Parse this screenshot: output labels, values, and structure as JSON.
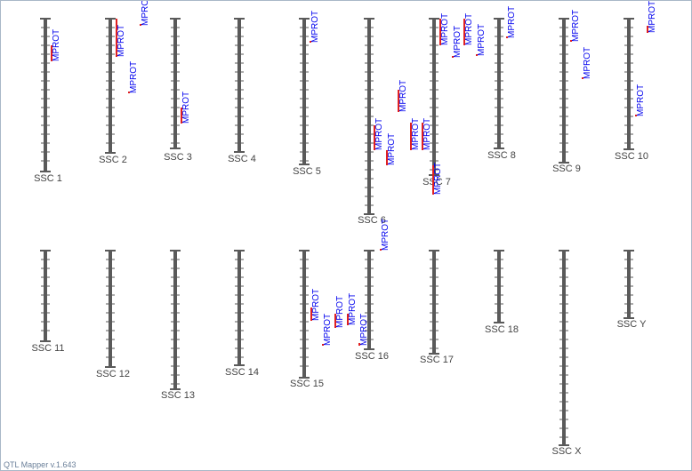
{
  "chromosomes": [
    {
      "label": "SSC 1"
    },
    {
      "label": "SSC 2"
    },
    {
      "label": "SSC 3"
    },
    {
      "label": "SSC 4"
    },
    {
      "label": "SSC 5"
    },
    {
      "label": "SSC 6"
    },
    {
      "label": "SSC 7"
    },
    {
      "label": "SSC 8"
    },
    {
      "label": "SSC 9"
    },
    {
      "label": "SSC 10"
    },
    {
      "label": "SSC 11"
    },
    {
      "label": "SSC 12"
    },
    {
      "label": "SSC 13"
    },
    {
      "label": "SSC 14"
    },
    {
      "label": "SSC 15"
    },
    {
      "label": "SSC 16"
    },
    {
      "label": "SSC 17"
    },
    {
      "label": "SSC 18"
    },
    {
      "label": "SSC X"
    },
    {
      "label": "SSC Y"
    }
  ],
  "qtls": [
    {
      "label": "MPROT"
    },
    {
      "label": "MPROT"
    },
    {
      "label": "MPROT"
    },
    {
      "label": "MPROT"
    },
    {
      "label": "MPROT"
    },
    {
      "label": "MPROT"
    },
    {
      "label": "MPROT"
    },
    {
      "label": "MPROT"
    },
    {
      "label": "MPROT"
    },
    {
      "label": "MPROT"
    },
    {
      "label": "MPROT"
    },
    {
      "label": "MPROT"
    },
    {
      "label": "MPROT"
    },
    {
      "label": "MPROT"
    },
    {
      "label": "MPROT"
    },
    {
      "label": "MPROT"
    },
    {
      "label": "MPROT"
    },
    {
      "label": "MPROT"
    },
    {
      "label": "MPROT"
    },
    {
      "label": "MPROT"
    },
    {
      "label": "MPROT"
    },
    {
      "label": "MPROT"
    },
    {
      "label": "MPROT"
    },
    {
      "label": "MPROT"
    },
    {
      "label": "MPROT"
    },
    {
      "label": "MPROT"
    },
    {
      "label": "MPROT"
    }
  ],
  "footer": "QTL Mapper v.1.643"
}
